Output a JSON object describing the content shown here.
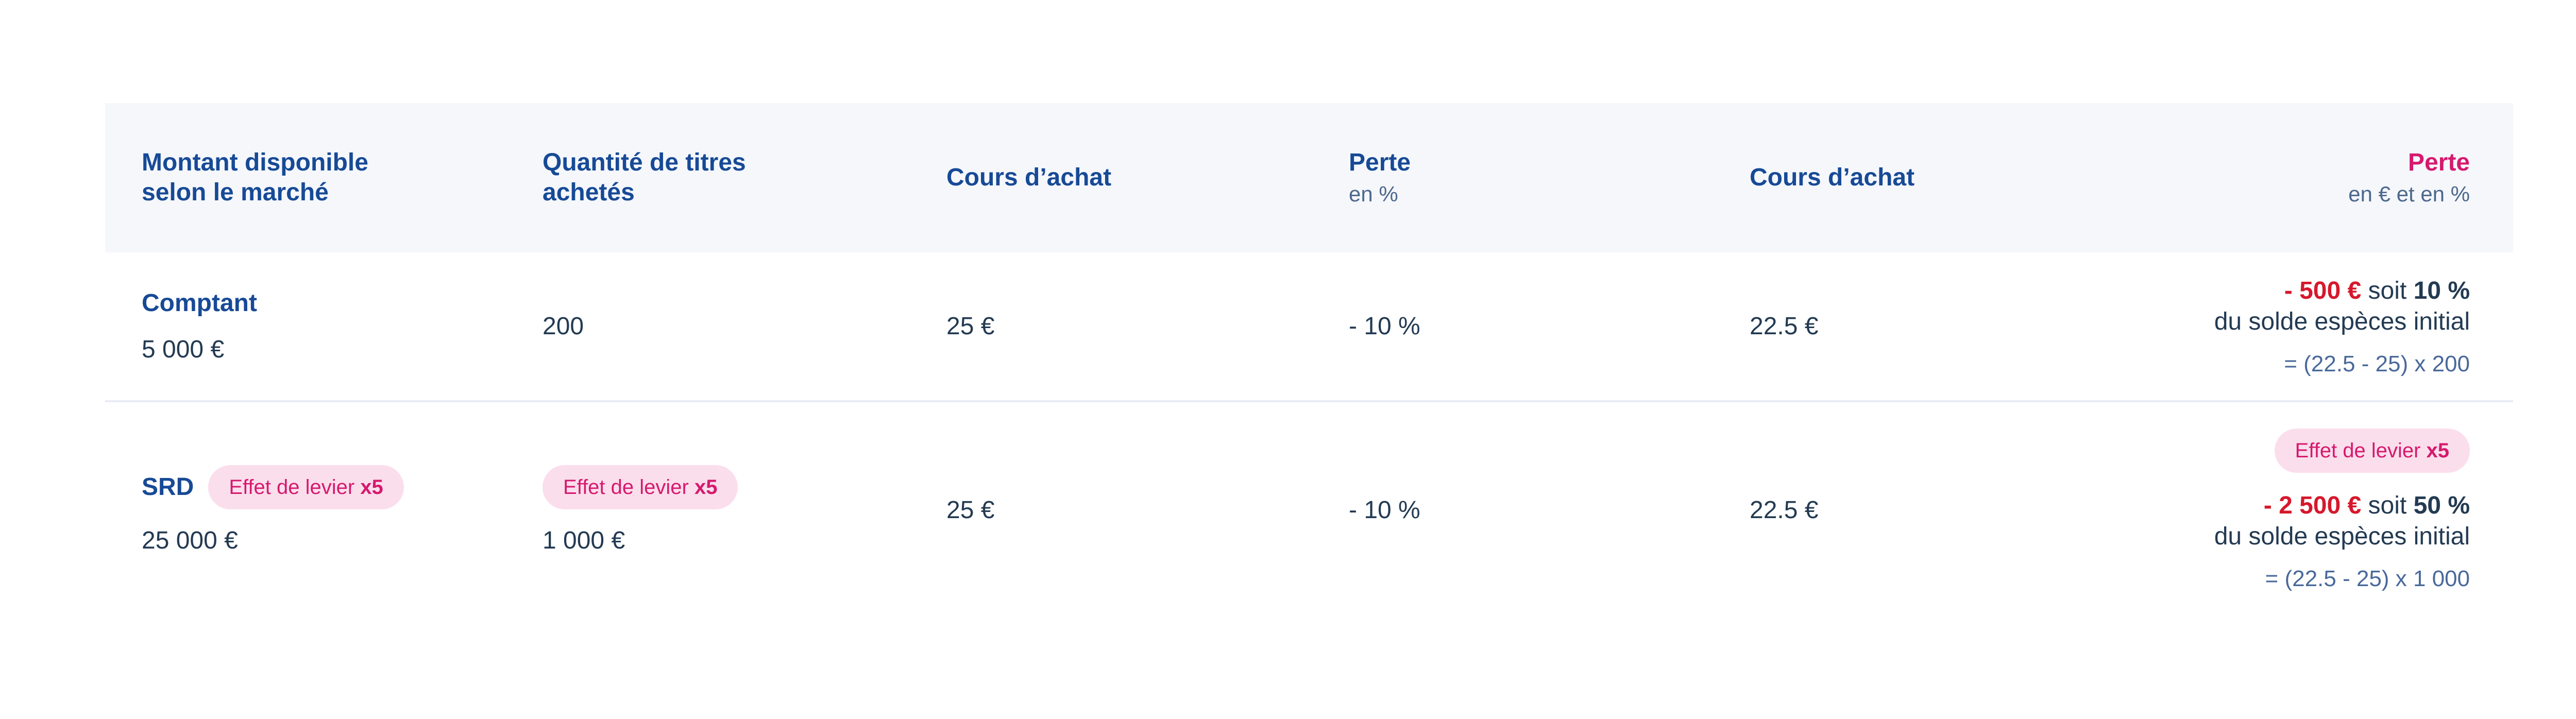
{
  "colors": {
    "header_bg": "#f5f7fb",
    "header_blue": "#174a96",
    "accent_pink": "#d6196e",
    "badge_bg": "#fbdeec",
    "loss_red": "#d6182c",
    "value_navy": "#233a52",
    "muted_slate": "#4d688c",
    "formula_blue": "#49699a",
    "divider": "#e8ecf4"
  },
  "table": {
    "header": {
      "market": {
        "line1": "Montant disponible",
        "line2": "selon le marché"
      },
      "quantity": {
        "line1": "Quantité de titres",
        "line2": "achetés"
      },
      "buy_price": "Cours d’achat",
      "loss_pct": {
        "title": "Perte",
        "sub": "en %"
      },
      "sell_price": "Cours d’achat",
      "loss_total": {
        "title": "Perte",
        "sub": "en € et en %"
      }
    },
    "rows": [
      {
        "market_name": "Comptant",
        "market_amount": "5 000 €",
        "quantity": "200",
        "buy_price": "25 €",
        "loss_pct": "- 10 %",
        "sell_price": "22.5 €",
        "loss_value": "- 500 €",
        "loss_join": " soit ",
        "loss_percent": "10 %",
        "loss_line2": "du solde espèces initial",
        "loss_formula": "= (22.5 - 25) x 200"
      },
      {
        "market_name": "SRD",
        "market_amount": "25 000 €",
        "badge_label": "Effet de levier ",
        "badge_mult": "x5",
        "quantity_amount": "1 000 €",
        "buy_price": "25 €",
        "loss_pct": "- 10 %",
        "sell_price": "22.5 €",
        "loss_value": "- 2 500 €",
        "loss_join": " soit ",
        "loss_percent": "50 %",
        "loss_line2": "du solde espèces initial",
        "loss_formula": "= (22.5 - 25) x 1 000"
      }
    ]
  }
}
